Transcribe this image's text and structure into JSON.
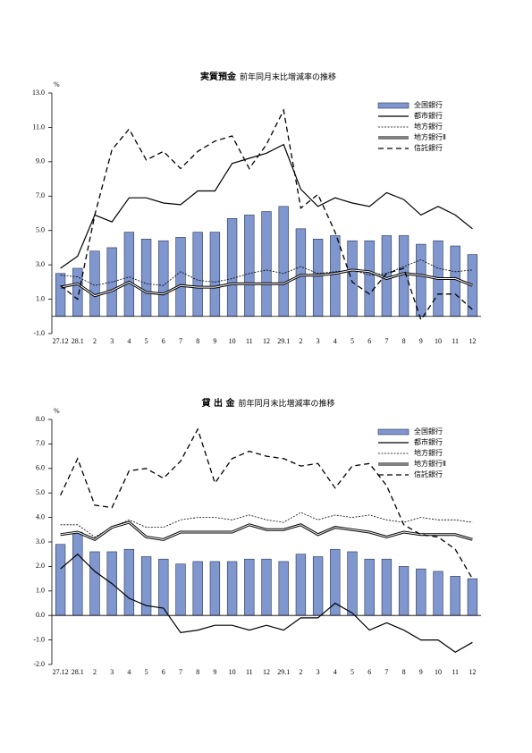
{
  "chart_data": [
    {
      "type": "bar_line",
      "title": "実質預金",
      "subtitle": "前年同月末比増減率の推移",
      "ylabel": "%",
      "categories": [
        "27.12",
        "28.1",
        "2",
        "3",
        "4",
        "5",
        "6",
        "7",
        "8",
        "9",
        "10",
        "11",
        "12",
        "29.1",
        "2",
        "3",
        "4",
        "5",
        "6",
        "7",
        "8",
        "9",
        "10",
        "11",
        "12"
      ],
      "ylim": [
        -1,
        13
      ],
      "yticks": [
        {
          "value": -1,
          "label": "-1.0"
        },
        {
          "value": 1,
          "label": "1.0"
        },
        {
          "value": 3,
          "label": "3.0"
        },
        {
          "value": 5,
          "label": "5.0"
        },
        {
          "value": 7,
          "label": "7.0"
        },
        {
          "value": 9,
          "label": "9.0"
        },
        {
          "value": 11,
          "label": "11.0"
        },
        {
          "value": 13,
          "label": "13.0"
        }
      ],
      "legend": "upper right",
      "series": [
        {
          "name": "全国銀行",
          "kind": "bar",
          "color": "#7f96cf",
          "values": [
            2.5,
            2.8,
            3.8,
            4.0,
            4.9,
            4.5,
            4.4,
            4.6,
            4.9,
            4.9,
            5.7,
            5.9,
            6.1,
            6.4,
            5.1,
            4.5,
            4.7,
            4.4,
            4.4,
            4.7,
            4.7,
            4.2,
            4.4,
            4.1,
            3.6
          ]
        },
        {
          "name": "都市銀行",
          "kind": "line",
          "style": "solid",
          "color": "#000000",
          "values": [
            2.8,
            3.5,
            5.9,
            5.5,
            6.9,
            6.9,
            6.6,
            6.5,
            7.3,
            7.3,
            8.9,
            9.2,
            9.5,
            10.0,
            7.4,
            6.4,
            6.9,
            6.6,
            6.4,
            7.2,
            6.8,
            5.9,
            6.4,
            5.9,
            5.1
          ]
        },
        {
          "name": "地方銀行",
          "kind": "line",
          "style": "dotted",
          "color": "#000000",
          "values": [
            2.4,
            2.3,
            1.8,
            2.0,
            2.3,
            1.9,
            1.8,
            2.6,
            2.1,
            2.0,
            2.2,
            2.5,
            2.7,
            2.5,
            2.9,
            2.5,
            2.6,
            2.7,
            2.4,
            2.5,
            2.9,
            3.3,
            2.8,
            2.6,
            2.7
          ]
        },
        {
          "name": "地方銀行Ⅱ",
          "kind": "line",
          "style": "double",
          "color": "#000000",
          "values": [
            1.7,
            1.9,
            1.2,
            1.5,
            2.0,
            1.4,
            1.3,
            1.8,
            1.7,
            1.7,
            1.9,
            1.9,
            1.9,
            1.9,
            2.4,
            2.4,
            2.5,
            2.7,
            2.6,
            2.2,
            2.5,
            2.4,
            2.2,
            2.2,
            1.8
          ]
        },
        {
          "name": "信託銀行",
          "kind": "line",
          "style": "dashed",
          "color": "#000000",
          "values": [
            1.8,
            1.0,
            5.9,
            9.7,
            10.9,
            9.1,
            9.6,
            8.6,
            9.6,
            10.2,
            10.5,
            8.6,
            10.0,
            12.0,
            6.3,
            7.1,
            4.9,
            2.0,
            1.3,
            2.5,
            2.8,
            -0.2,
            1.3,
            1.3,
            0.4
          ]
        }
      ]
    },
    {
      "type": "bar_line",
      "title": "貸 出 金",
      "subtitle": "前年同月末比増減率の推移",
      "ylabel": "%",
      "categories": [
        "27.12",
        "28.1",
        "2",
        "3",
        "4",
        "5",
        "6",
        "7",
        "8",
        "9",
        "10",
        "11",
        "12",
        "29.1",
        "2",
        "3",
        "4",
        "5",
        "6",
        "7",
        "8",
        "9",
        "10",
        "11",
        "12"
      ],
      "ylim": [
        -2,
        8
      ],
      "yticks": [
        {
          "value": -2,
          "label": "-2.0"
        },
        {
          "value": -1,
          "label": "-1.0"
        },
        {
          "value": 0,
          "label": "0.0"
        },
        {
          "value": 1,
          "label": "1.0"
        },
        {
          "value": 2,
          "label": "2.0"
        },
        {
          "value": 3,
          "label": "3.0"
        },
        {
          "value": 4,
          "label": "4.0"
        },
        {
          "value": 5,
          "label": "5.0"
        },
        {
          "value": 6,
          "label": "6.0"
        },
        {
          "value": 7,
          "label": "7.0"
        },
        {
          "value": 8,
          "label": "8.0"
        }
      ],
      "legend": "upper right",
      "series": [
        {
          "name": "全国銀行",
          "kind": "bar",
          "color": "#7f96cf",
          "values": [
            2.9,
            3.4,
            2.6,
            2.6,
            2.7,
            2.4,
            2.3,
            2.1,
            2.2,
            2.2,
            2.2,
            2.3,
            2.3,
            2.2,
            2.5,
            2.4,
            2.7,
            2.6,
            2.3,
            2.3,
            2.0,
            1.9,
            1.8,
            1.6,
            1.5
          ]
        },
        {
          "name": "都市銀行",
          "kind": "line",
          "style": "solid",
          "color": "#000000",
          "values": [
            1.9,
            2.5,
            1.8,
            1.3,
            0.7,
            0.4,
            0.3,
            -0.7,
            -0.6,
            -0.4,
            -0.4,
            -0.6,
            -0.4,
            -0.6,
            -0.1,
            -0.1,
            0.5,
            0.1,
            -0.6,
            -0.3,
            -0.6,
            -1.0,
            -1.0,
            -1.5,
            -1.1
          ]
        },
        {
          "name": "地方銀行",
          "kind": "line",
          "style": "dotted",
          "color": "#000000",
          "values": [
            3.7,
            3.7,
            3.2,
            3.6,
            3.9,
            3.6,
            3.6,
            3.9,
            4.0,
            4.0,
            3.9,
            4.1,
            3.9,
            3.8,
            4.2,
            3.9,
            4.1,
            4.0,
            4.1,
            3.9,
            3.8,
            4.0,
            3.9,
            3.9,
            3.8
          ]
        },
        {
          "name": "地方銀行Ⅱ",
          "kind": "line",
          "style": "double",
          "color": "#000000",
          "values": [
            3.3,
            3.4,
            3.1,
            3.6,
            3.8,
            3.2,
            3.1,
            3.4,
            3.4,
            3.4,
            3.4,
            3.7,
            3.5,
            3.5,
            3.7,
            3.3,
            3.6,
            3.5,
            3.4,
            3.2,
            3.4,
            3.3,
            3.3,
            3.3,
            3.1
          ]
        },
        {
          "name": "信託銀行",
          "kind": "line",
          "style": "dashed",
          "color": "#000000",
          "values": [
            4.9,
            6.4,
            4.5,
            4.4,
            5.9,
            6.0,
            5.6,
            6.3,
            7.6,
            5.4,
            6.4,
            6.7,
            6.5,
            6.4,
            6.1,
            6.2,
            5.2,
            6.1,
            6.2,
            5.3,
            3.7,
            3.3,
            3.2,
            2.7,
            1.5
          ]
        }
      ]
    }
  ]
}
